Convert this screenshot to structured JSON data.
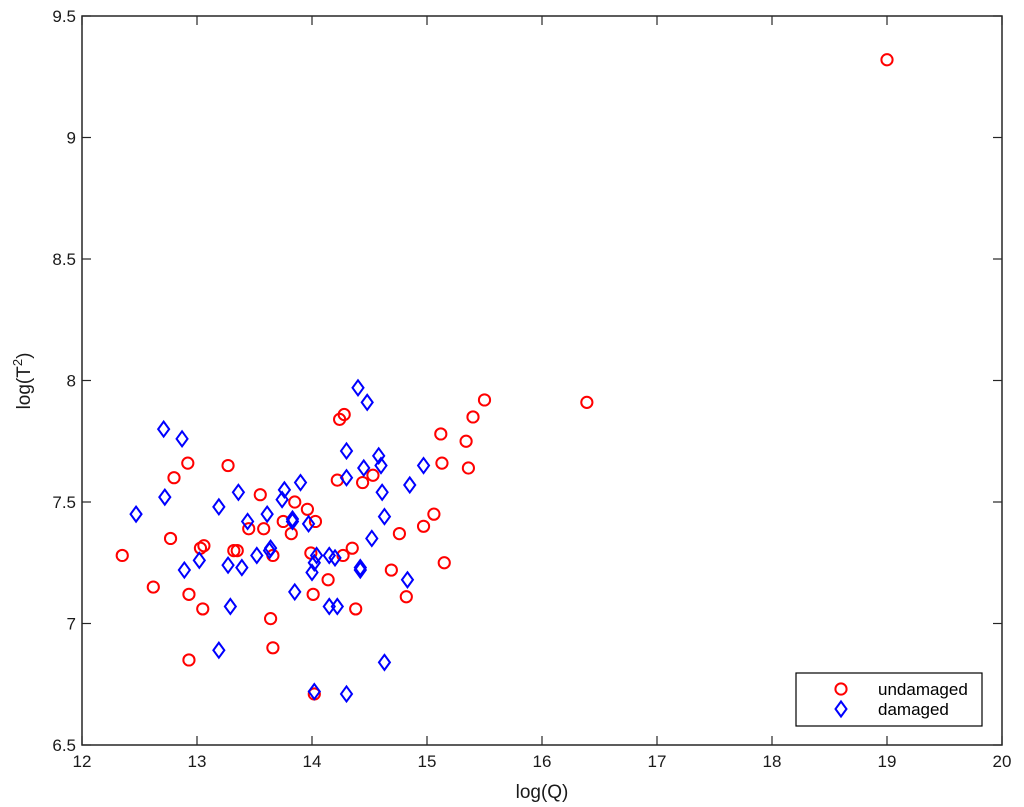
{
  "chart_data": {
    "type": "scatter",
    "xlabel": "log(Q)",
    "ylabel_main": "log(T",
    "ylabel_sup": "2",
    "ylabel_close": ")",
    "xlim": [
      12,
      20
    ],
    "ylim": [
      6.5,
      9.5
    ],
    "xticks": [
      12,
      13,
      14,
      15,
      16,
      17,
      18,
      19,
      20
    ],
    "yticks": [
      6.5,
      7,
      7.5,
      8,
      8.5,
      9,
      9.5
    ],
    "xtick_labels": [
      "12",
      "13",
      "14",
      "15",
      "16",
      "17",
      "18",
      "19",
      "20"
    ],
    "ytick_labels": [
      "6.5",
      "7",
      "7.5",
      "8",
      "8.5",
      "9",
      "9.5"
    ],
    "grid": false,
    "legend_position": "bottom-right",
    "series": [
      {
        "name": "undamaged",
        "marker": "circle",
        "color": "#ff0000",
        "points": [
          [
            12.35,
            7.28
          ],
          [
            12.62,
            7.15
          ],
          [
            12.77,
            7.35
          ],
          [
            12.8,
            7.6
          ],
          [
            12.92,
            7.66
          ],
          [
            12.93,
            7.12
          ],
          [
            12.93,
            6.85
          ],
          [
            13.03,
            7.31
          ],
          [
            13.06,
            7.32
          ],
          [
            13.05,
            7.06
          ],
          [
            13.27,
            7.65
          ],
          [
            13.32,
            7.3
          ],
          [
            13.35,
            7.3
          ],
          [
            13.45,
            7.39
          ],
          [
            13.55,
            7.53
          ],
          [
            13.58,
            7.39
          ],
          [
            13.64,
            7.02
          ],
          [
            13.66,
            7.28
          ],
          [
            13.66,
            6.9
          ],
          [
            13.75,
            7.42
          ],
          [
            13.82,
            7.37
          ],
          [
            13.85,
            7.5
          ],
          [
            13.96,
            7.47
          ],
          [
            13.99,
            7.29
          ],
          [
            14.01,
            7.12
          ],
          [
            14.03,
            7.42
          ],
          [
            14.02,
            6.71
          ],
          [
            14.14,
            7.18
          ],
          [
            14.22,
            7.59
          ],
          [
            14.24,
            7.84
          ],
          [
            14.28,
            7.86
          ],
          [
            14.27,
            7.28
          ],
          [
            14.35,
            7.31
          ],
          [
            14.38,
            7.06
          ],
          [
            14.44,
            7.58
          ],
          [
            14.53,
            7.61
          ],
          [
            14.69,
            7.22
          ],
          [
            14.76,
            7.37
          ],
          [
            14.82,
            7.11
          ],
          [
            14.97,
            7.4
          ],
          [
            15.06,
            7.45
          ],
          [
            15.12,
            7.78
          ],
          [
            15.13,
            7.66
          ],
          [
            15.15,
            7.25
          ],
          [
            15.34,
            7.75
          ],
          [
            15.36,
            7.64
          ],
          [
            15.4,
            7.85
          ],
          [
            15.5,
            7.92
          ],
          [
            16.39,
            7.91
          ],
          [
            19.0,
            9.32
          ]
        ]
      },
      {
        "name": "damaged",
        "marker": "diamond",
        "color": "#0000ff",
        "points": [
          [
            12.47,
            7.45
          ],
          [
            12.71,
            7.8
          ],
          [
            12.72,
            7.52
          ],
          [
            12.87,
            7.76
          ],
          [
            12.89,
            7.22
          ],
          [
            13.02,
            7.26
          ],
          [
            13.19,
            7.48
          ],
          [
            13.19,
            6.89
          ],
          [
            13.27,
            7.24
          ],
          [
            13.29,
            7.07
          ],
          [
            13.36,
            7.54
          ],
          [
            13.39,
            7.23
          ],
          [
            13.44,
            7.42
          ],
          [
            13.52,
            7.28
          ],
          [
            13.61,
            7.45
          ],
          [
            13.63,
            7.3
          ],
          [
            13.64,
            7.31
          ],
          [
            13.74,
            7.51
          ],
          [
            13.76,
            7.55
          ],
          [
            13.83,
            7.42
          ],
          [
            13.83,
            7.43
          ],
          [
            13.85,
            7.13
          ],
          [
            13.9,
            7.58
          ],
          [
            13.97,
            7.41
          ],
          [
            14.0,
            7.21
          ],
          [
            14.02,
            7.25
          ],
          [
            14.04,
            7.28
          ],
          [
            14.02,
            6.72
          ],
          [
            14.15,
            7.28
          ],
          [
            14.15,
            7.07
          ],
          [
            14.2,
            7.27
          ],
          [
            14.22,
            7.07
          ],
          [
            14.3,
            7.6
          ],
          [
            14.3,
            7.71
          ],
          [
            14.3,
            6.71
          ],
          [
            14.4,
            7.97
          ],
          [
            14.42,
            7.23
          ],
          [
            14.42,
            7.22
          ],
          [
            14.45,
            7.64
          ],
          [
            14.48,
            7.91
          ],
          [
            14.52,
            7.35
          ],
          [
            14.58,
            7.69
          ],
          [
            14.6,
            7.65
          ],
          [
            14.61,
            7.54
          ],
          [
            14.63,
            7.44
          ],
          [
            14.63,
            6.84
          ],
          [
            14.83,
            7.18
          ],
          [
            14.85,
            7.57
          ],
          [
            14.97,
            7.65
          ]
        ]
      }
    ]
  }
}
